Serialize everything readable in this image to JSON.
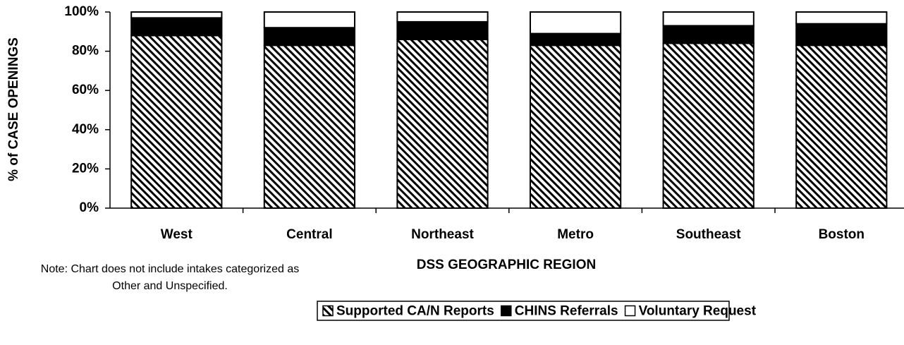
{
  "chart_data": {
    "type": "stacked_bar",
    "y_label": "% of CASE OPENINGS",
    "x_label": "DSS GEOGRAPHIC REGION",
    "note": [
      "Note: Chart does not include intakes categorized as",
      "Other and Unspecified."
    ],
    "categories": [
      "West",
      "Central",
      "Northeast",
      "Metro",
      "Southeast",
      "Boston"
    ],
    "series": [
      {
        "name": "Supported CA/N Reports",
        "color": "#000000",
        "hatch": true,
        "values": [
          88,
          83,
          86,
          83,
          84,
          83
        ]
      },
      {
        "name": "CHINS Referrals",
        "color": "#000000",
        "values": [
          9,
          9,
          9,
          6,
          9,
          11
        ]
      },
      {
        "name": "Voluntary Request",
        "color": "#ffffff",
        "values": [
          3,
          8,
          5,
          11,
          7,
          6
        ]
      }
    ],
    "ylim": [
      0,
      100
    ],
    "yticks": [
      {
        "value": 0,
        "label": "0%"
      },
      {
        "value": 20,
        "label": "20%"
      },
      {
        "value": 40,
        "label": "40%"
      },
      {
        "value": 60,
        "label": "60%"
      },
      {
        "value": 80,
        "label": "80%"
      },
      {
        "value": 100,
        "label": "100%"
      }
    ],
    "legend": "bottom"
  }
}
